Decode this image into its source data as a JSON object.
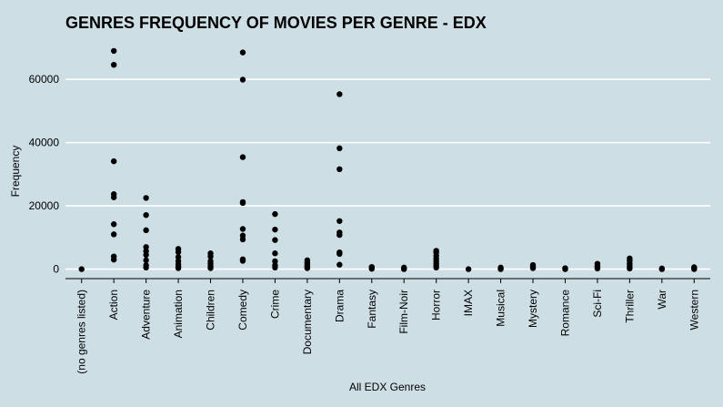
{
  "chart_data": {
    "type": "scatter",
    "title": "GENRES FREQUENCY OF MOVIES PER GENRE - EDX",
    "xlabel": "All EDX Genres",
    "ylabel": "Frequency",
    "ylim": [
      -3000,
      73000
    ],
    "yticks": [
      0,
      20000,
      40000,
      60000
    ],
    "ytick_labels": [
      "0",
      "20000",
      "40000",
      "60000"
    ],
    "grid": true,
    "background": "#cddee5",
    "grid_color": "#ffffff",
    "point_color": "#000000",
    "categories": [
      "(no genres listed)",
      "Action",
      "Adventure",
      "Animation",
      "Children",
      "Comedy",
      "Crime",
      "Documentary",
      "Drama",
      "Fantasy",
      "Film-Noir",
      "Horror",
      "IMAX",
      "Musical",
      "Mystery",
      "Romance",
      "Sci-Fi",
      "Thriller",
      "War",
      "Western"
    ],
    "points": [
      [
        0,
        0
      ],
      [
        1,
        69000
      ],
      [
        1,
        64600
      ],
      [
        1,
        34100
      ],
      [
        1,
        23700
      ],
      [
        1,
        22700
      ],
      [
        1,
        14200
      ],
      [
        1,
        11000
      ],
      [
        1,
        4000
      ],
      [
        1,
        3000
      ],
      [
        2,
        22500
      ],
      [
        2,
        17100
      ],
      [
        2,
        12300
      ],
      [
        2,
        7000
      ],
      [
        2,
        5700
      ],
      [
        2,
        4500
      ],
      [
        2,
        2800
      ],
      [
        2,
        1200
      ],
      [
        2,
        500
      ],
      [
        3,
        6400
      ],
      [
        3,
        5400
      ],
      [
        3,
        3800
      ],
      [
        3,
        2500
      ],
      [
        3,
        1500
      ],
      [
        3,
        800
      ],
      [
        3,
        300
      ],
      [
        4,
        5000
      ],
      [
        4,
        4000
      ],
      [
        4,
        2500
      ],
      [
        4,
        1700
      ],
      [
        4,
        900
      ],
      [
        4,
        300
      ],
      [
        5,
        68500
      ],
      [
        5,
        59900
      ],
      [
        5,
        35400
      ],
      [
        5,
        21200
      ],
      [
        5,
        20900
      ],
      [
        5,
        12700
      ],
      [
        5,
        10600
      ],
      [
        5,
        9400
      ],
      [
        5,
        3100
      ],
      [
        5,
        2600
      ],
      [
        6,
        17400
      ],
      [
        6,
        12500
      ],
      [
        6,
        9200
      ],
      [
        6,
        5000
      ],
      [
        6,
        2500
      ],
      [
        6,
        1200
      ],
      [
        6,
        500
      ],
      [
        7,
        2800
      ],
      [
        7,
        2000
      ],
      [
        7,
        1300
      ],
      [
        7,
        700
      ],
      [
        7,
        300
      ],
      [
        8,
        55300
      ],
      [
        8,
        38200
      ],
      [
        8,
        31600
      ],
      [
        8,
        15200
      ],
      [
        8,
        11600
      ],
      [
        8,
        10800
      ],
      [
        8,
        5300
      ],
      [
        8,
        4800
      ],
      [
        8,
        1400
      ],
      [
        9,
        700
      ],
      [
        9,
        300
      ],
      [
        9,
        100
      ],
      [
        10,
        500
      ],
      [
        10,
        200
      ],
      [
        10,
        0
      ],
      [
        11,
        5800
      ],
      [
        11,
        5200
      ],
      [
        11,
        4200
      ],
      [
        11,
        3300
      ],
      [
        11,
        2500
      ],
      [
        11,
        1800
      ],
      [
        11,
        1100
      ],
      [
        11,
        500
      ],
      [
        12,
        0
      ],
      [
        13,
        500
      ],
      [
        13,
        200
      ],
      [
        13,
        0
      ],
      [
        14,
        1300
      ],
      [
        14,
        700
      ],
      [
        14,
        300
      ],
      [
        15,
        300
      ],
      [
        15,
        0
      ],
      [
        16,
        1700
      ],
      [
        16,
        1000
      ],
      [
        16,
        600
      ],
      [
        16,
        200
      ],
      [
        17,
        3400
      ],
      [
        17,
        2600
      ],
      [
        17,
        1800
      ],
      [
        17,
        1100
      ],
      [
        17,
        500
      ],
      [
        17,
        200
      ],
      [
        18,
        200
      ],
      [
        18,
        0
      ],
      [
        19,
        600
      ],
      [
        19,
        300
      ],
      [
        19,
        0
      ]
    ]
  }
}
